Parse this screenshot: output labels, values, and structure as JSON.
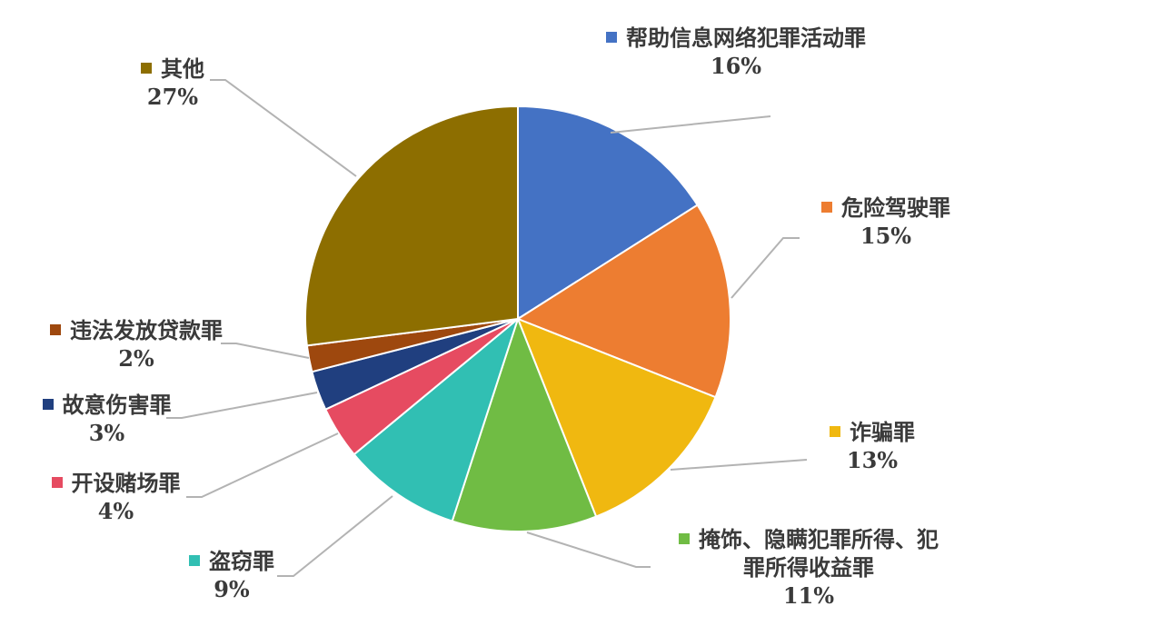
{
  "chart_data": {
    "type": "pie",
    "title": "",
    "slices": [
      {
        "name": "帮助信息网络犯罪活动罪",
        "pct": "16%",
        "value": 16,
        "color": "#4472C4"
      },
      {
        "name": "危险驾驶罪",
        "pct": "15%",
        "value": 15,
        "color": "#ED7D31"
      },
      {
        "name": "诈骗罪",
        "pct": "13%",
        "value": 13,
        "color": "#F0B810"
      },
      {
        "name": "掩饰、隐瞒犯罪所得、犯罪所得收益罪",
        "name_lines": [
          "掩饰、隐瞒犯罪所得、犯",
          "罪所得收益罪"
        ],
        "pct": "11%",
        "value": 11,
        "color": "#70BC44"
      },
      {
        "name": "盗窃罪",
        "pct": "9%",
        "value": 9,
        "color": "#31BFB3"
      },
      {
        "name": "开设赌场罪",
        "pct": "4%",
        "value": 4,
        "color": "#E64B61"
      },
      {
        "name": "故意伤害罪",
        "pct": "3%",
        "value": 3,
        "color": "#203F7F"
      },
      {
        "name": "违法发放贷款罪",
        "pct": "2%",
        "value": 2,
        "color": "#9E480E"
      },
      {
        "name": "其他",
        "pct": "27%",
        "value": 27,
        "color": "#8D6E00"
      }
    ],
    "legend": "data labels with leader lines"
  }
}
